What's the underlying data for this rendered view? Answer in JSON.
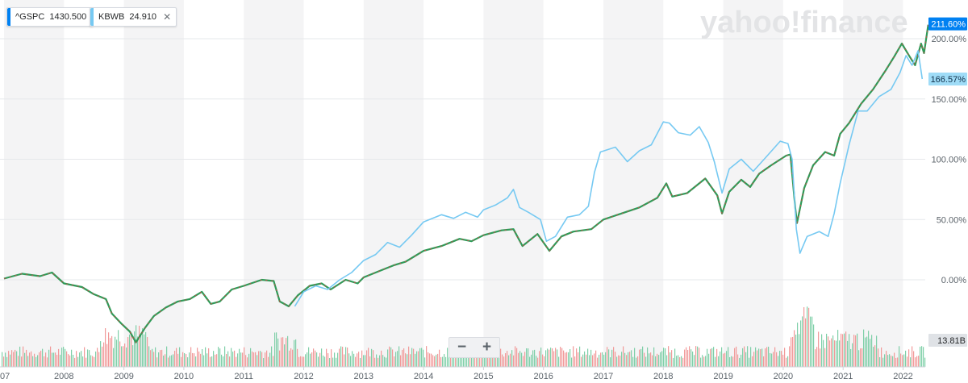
{
  "legend": [
    {
      "symbol": "^GSPC",
      "value": "1430.500",
      "color": "#0081f2"
    },
    {
      "symbol": "KBWB",
      "value": "24.910",
      "color": "#76c9f2",
      "closable": true
    }
  ],
  "watermark": "yahoo!finance",
  "zoom": {
    "minus": "−",
    "plus": "+"
  },
  "chart_data": {
    "type": "line",
    "x_axis_labels": [
      "07",
      "2008",
      "2009",
      "2010",
      "2011",
      "2012",
      "2013",
      "2014",
      "2015",
      "2016",
      "2017",
      "2018",
      "2019",
      "2020",
      "2021",
      "2022"
    ],
    "y_axis_labels": [
      "200.00%",
      "150.00%",
      "100.00%",
      "50.00%",
      "0.00%"
    ],
    "ylim": [
      -35,
      225
    ],
    "grid": true,
    "series": [
      {
        "name": "^GSPC",
        "color": "#0081f2",
        "last_label": "211.60%",
        "points": [
          [
            2007.0,
            1
          ],
          [
            2007.3,
            5
          ],
          [
            2007.6,
            3
          ],
          [
            2007.8,
            6
          ],
          [
            2008.0,
            -3
          ],
          [
            2008.3,
            -6
          ],
          [
            2008.5,
            -12
          ],
          [
            2008.7,
            -16
          ],
          [
            2008.8,
            -28
          ],
          [
            2008.95,
            -36
          ],
          [
            2009.1,
            -43
          ],
          [
            2009.2,
            -52
          ],
          [
            2009.35,
            -40
          ],
          [
            2009.5,
            -30
          ],
          [
            2009.7,
            -23
          ],
          [
            2009.9,
            -18
          ],
          [
            2010.1,
            -16
          ],
          [
            2010.3,
            -10
          ],
          [
            2010.45,
            -20
          ],
          [
            2010.6,
            -18
          ],
          [
            2010.8,
            -8
          ],
          [
            2011.0,
            -5
          ],
          [
            2011.3,
            0
          ],
          [
            2011.5,
            -1
          ],
          [
            2011.6,
            -18
          ],
          [
            2011.75,
            -22
          ],
          [
            2011.9,
            -13
          ],
          [
            2012.1,
            -5
          ],
          [
            2012.3,
            -3
          ],
          [
            2012.45,
            -8
          ],
          [
            2012.7,
            0
          ],
          [
            2012.9,
            -3
          ],
          [
            2013.0,
            2
          ],
          [
            2013.3,
            8
          ],
          [
            2013.5,
            12
          ],
          [
            2013.7,
            15
          ],
          [
            2014.0,
            24
          ],
          [
            2014.3,
            28
          ],
          [
            2014.6,
            34
          ],
          [
            2014.8,
            32
          ],
          [
            2015.0,
            37
          ],
          [
            2015.3,
            41
          ],
          [
            2015.5,
            42
          ],
          [
            2015.65,
            28
          ],
          [
            2015.9,
            38
          ],
          [
            2016.1,
            24
          ],
          [
            2016.3,
            36
          ],
          [
            2016.5,
            40
          ],
          [
            2016.8,
            42
          ],
          [
            2017.0,
            50
          ],
          [
            2017.3,
            55
          ],
          [
            2017.6,
            60
          ],
          [
            2017.9,
            68
          ],
          [
            2018.05,
            80
          ],
          [
            2018.15,
            69
          ],
          [
            2018.4,
            72
          ],
          [
            2018.7,
            84
          ],
          [
            2018.9,
            70
          ],
          [
            2018.98,
            55
          ],
          [
            2019.1,
            73
          ],
          [
            2019.3,
            83
          ],
          [
            2019.45,
            77
          ],
          [
            2019.6,
            88
          ],
          [
            2019.8,
            95
          ],
          [
            2020.05,
            103
          ],
          [
            2020.12,
            104
          ],
          [
            2020.2,
            60
          ],
          [
            2020.23,
            47
          ],
          [
            2020.35,
            76
          ],
          [
            2020.5,
            95
          ],
          [
            2020.7,
            106
          ],
          [
            2020.85,
            103
          ],
          [
            2020.95,
            121
          ],
          [
            2021.1,
            130
          ],
          [
            2021.3,
            146
          ],
          [
            2021.5,
            158
          ],
          [
            2021.7,
            173
          ],
          [
            2021.85,
            185
          ],
          [
            2021.98,
            196
          ],
          [
            2022.1,
            186
          ],
          [
            2022.2,
            178
          ],
          [
            2022.3,
            196
          ],
          [
            2022.35,
            188
          ],
          [
            2022.42,
            211.6
          ]
        ]
      },
      {
        "name": "KBWB",
        "color": "#76c9f2",
        "last_label": "166.57%",
        "points": [
          [
            2011.85,
            -22
          ],
          [
            2012.0,
            -10
          ],
          [
            2012.2,
            -5
          ],
          [
            2012.4,
            -8
          ],
          [
            2012.6,
            0
          ],
          [
            2012.8,
            6
          ],
          [
            2013.0,
            16
          ],
          [
            2013.2,
            21
          ],
          [
            2013.4,
            31
          ],
          [
            2013.6,
            27
          ],
          [
            2013.8,
            37
          ],
          [
            2014.0,
            48
          ],
          [
            2014.3,
            54
          ],
          [
            2014.5,
            51
          ],
          [
            2014.7,
            56
          ],
          [
            2014.9,
            52
          ],
          [
            2015.0,
            58
          ],
          [
            2015.2,
            62
          ],
          [
            2015.4,
            68
          ],
          [
            2015.5,
            75
          ],
          [
            2015.6,
            60
          ],
          [
            2015.75,
            56
          ],
          [
            2015.95,
            50
          ],
          [
            2016.05,
            32
          ],
          [
            2016.2,
            36
          ],
          [
            2016.4,
            52
          ],
          [
            2016.6,
            54
          ],
          [
            2016.75,
            61
          ],
          [
            2016.85,
            89
          ],
          [
            2016.95,
            106
          ],
          [
            2017.2,
            110
          ],
          [
            2017.4,
            98
          ],
          [
            2017.6,
            107
          ],
          [
            2017.8,
            112
          ],
          [
            2018.0,
            131
          ],
          [
            2018.1,
            130
          ],
          [
            2018.25,
            122
          ],
          [
            2018.45,
            120
          ],
          [
            2018.6,
            127
          ],
          [
            2018.75,
            114
          ],
          [
            2018.85,
            98
          ],
          [
            2018.98,
            72
          ],
          [
            2019.1,
            92
          ],
          [
            2019.3,
            100
          ],
          [
            2019.5,
            90
          ],
          [
            2019.7,
            101
          ],
          [
            2019.95,
            115
          ],
          [
            2020.08,
            113
          ],
          [
            2020.15,
            100
          ],
          [
            2020.22,
            42
          ],
          [
            2020.28,
            22
          ],
          [
            2020.4,
            36
          ],
          [
            2020.6,
            40
          ],
          [
            2020.75,
            36
          ],
          [
            2020.85,
            55
          ],
          [
            2020.95,
            80
          ],
          [
            2021.1,
            112
          ],
          [
            2021.25,
            140
          ],
          [
            2021.4,
            140
          ],
          [
            2021.6,
            152
          ],
          [
            2021.8,
            158
          ],
          [
            2021.95,
            172
          ],
          [
            2022.05,
            186
          ],
          [
            2022.15,
            178
          ],
          [
            2022.25,
            190
          ],
          [
            2022.32,
            166.57
          ]
        ]
      }
    ],
    "volume_label": "13.81B"
  }
}
